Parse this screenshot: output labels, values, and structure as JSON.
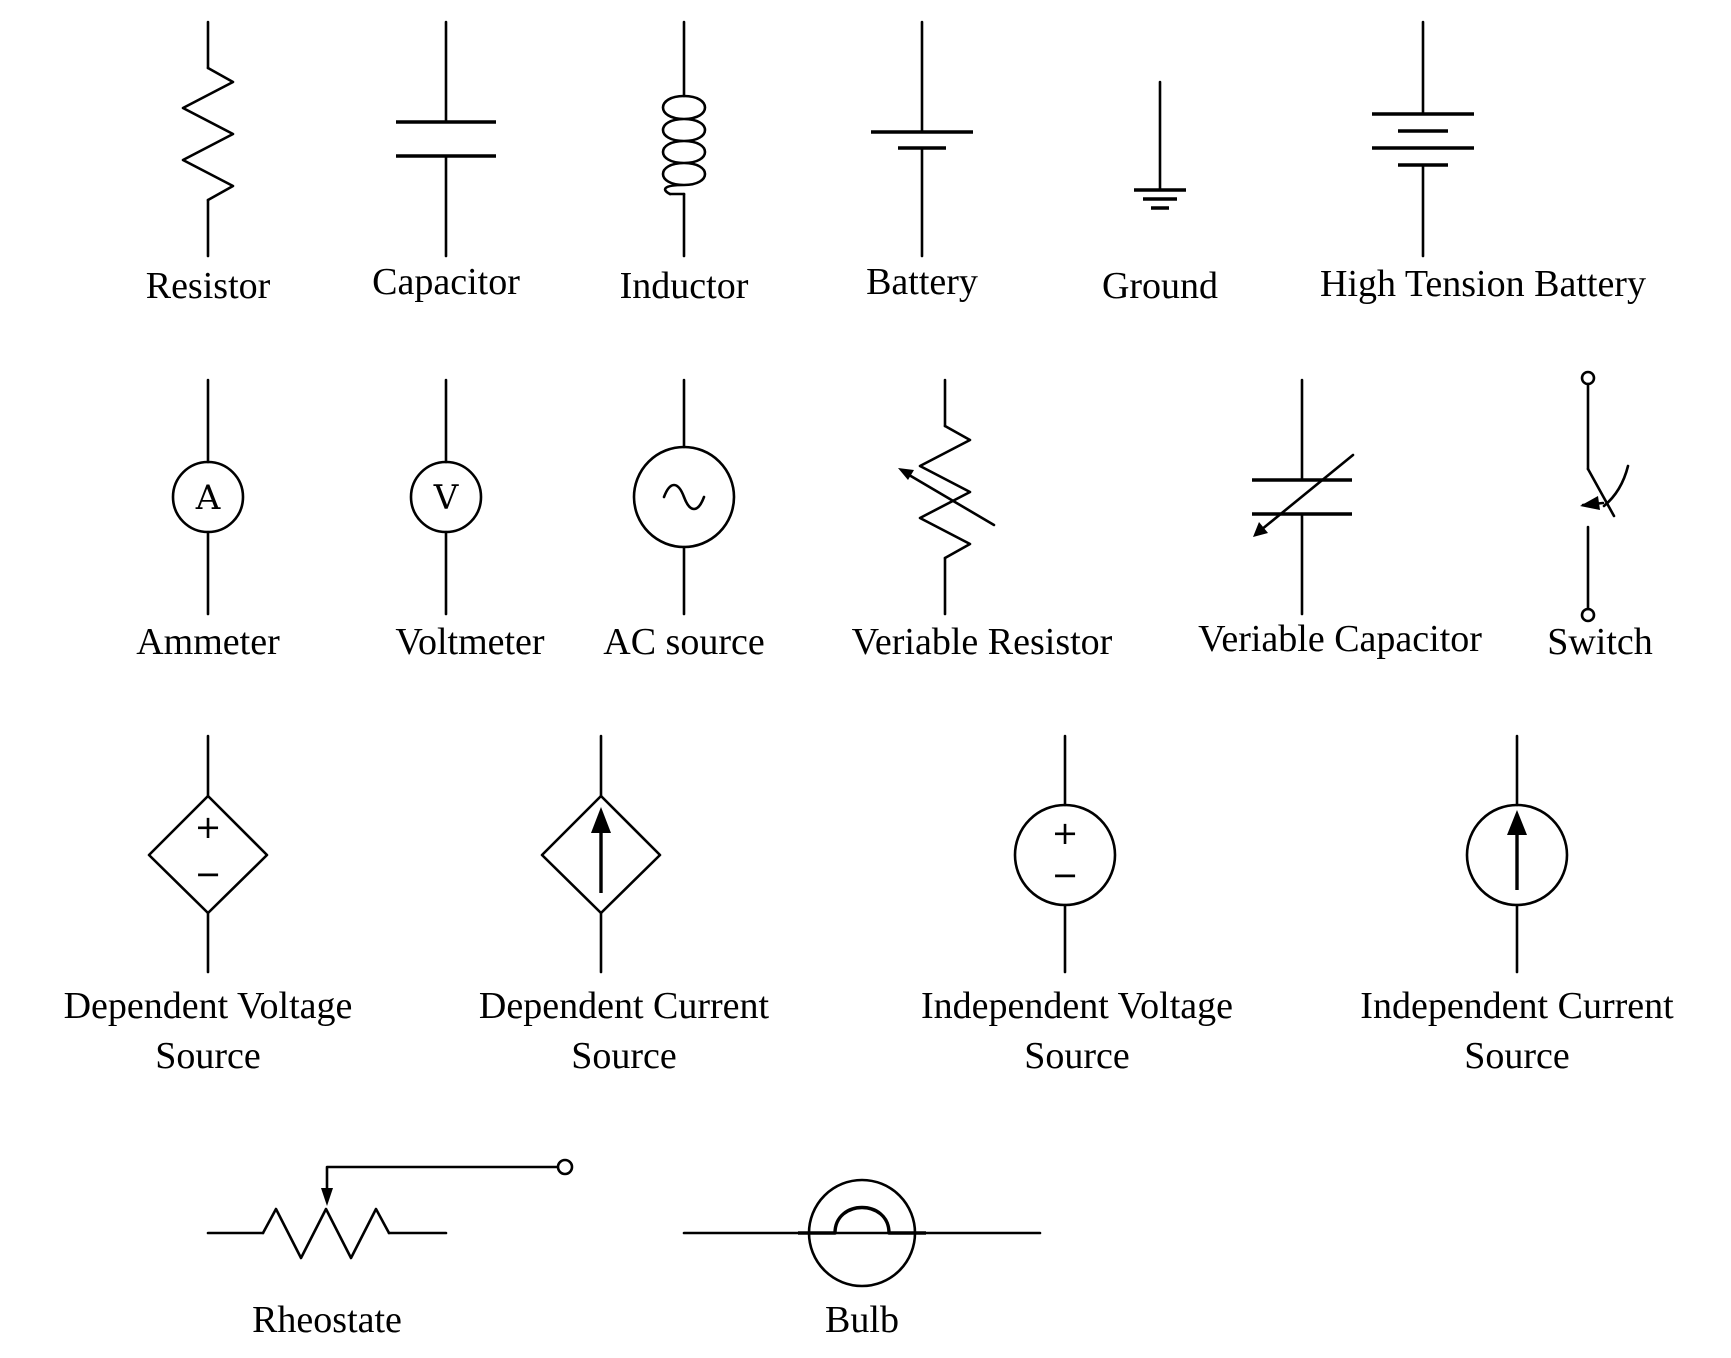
{
  "components": {
    "resistor": "Resistor",
    "capacitor": "Capacitor",
    "inductor": "Inductor",
    "battery": "Battery",
    "ground": "Ground",
    "ht_battery": "High Tension Battery",
    "ammeter": "Ammeter",
    "ammeter_letter": "A",
    "voltmeter": "Voltmeter",
    "voltmeter_letter": "V",
    "ac_source": "AC source",
    "var_resistor": "Veriable Resistor",
    "var_capacitor": "Veriable Capacitor",
    "switch": "Switch",
    "dep_voltage_1": "Dependent Voltage",
    "dep_voltage_2": "Source",
    "dep_current_1": "Dependent Current",
    "dep_current_2": "Source",
    "ind_voltage_1": "Independent Voltage",
    "ind_voltage_2": "Source",
    "ind_current_1": "Independent Current",
    "ind_current_2": "Source",
    "rheostat": "Rheostate",
    "bulb": "Bulb",
    "plus_sign": "+",
    "minus_sign": "−"
  }
}
